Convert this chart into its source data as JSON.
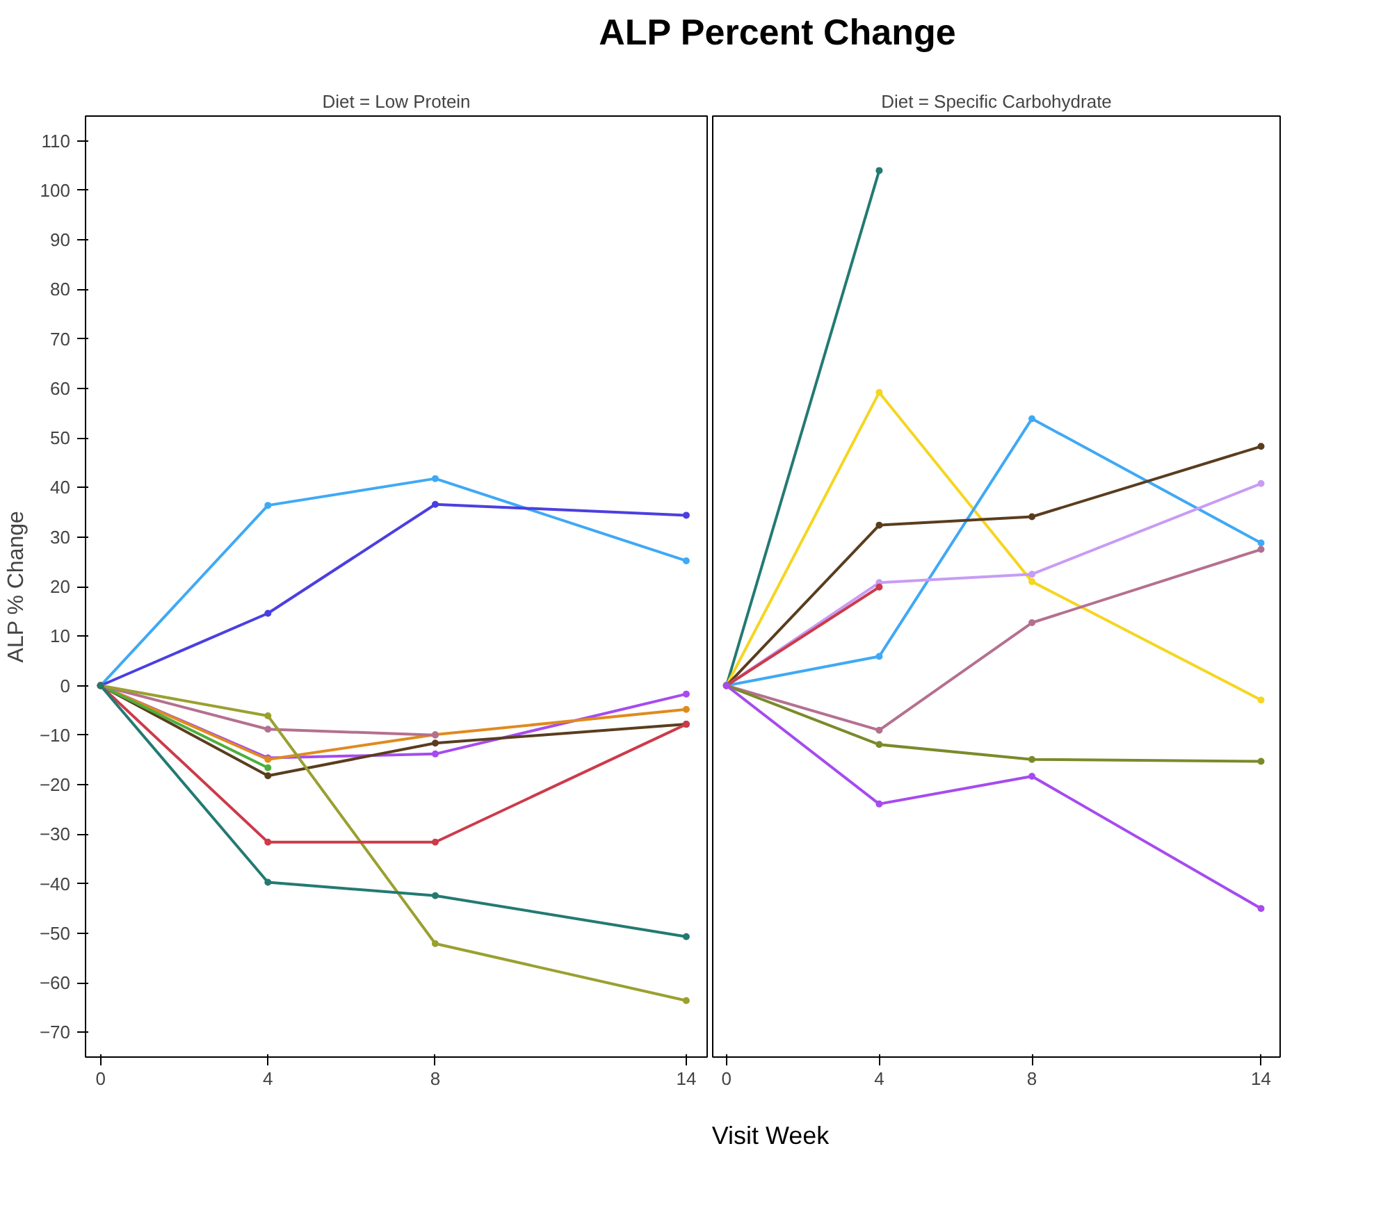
{
  "chart_data": [
    {
      "type": "line",
      "title": "ALP Percent Change",
      "subtitle": "Diet = Low Protein",
      "xlabel": "Visit Week",
      "ylabel": "ALP % Change",
      "marker": "circle",
      "line_style": "solid",
      "grid": false,
      "xlim": [
        -0.36,
        14.5
      ],
      "ylim": [
        -75,
        115
      ],
      "xticks": [
        0,
        4,
        8,
        14
      ],
      "yticks": [
        -70,
        -60,
        -50,
        -40,
        -30,
        -20,
        -10,
        0,
        10,
        20,
        30,
        40,
        50,
        60,
        70,
        80,
        90,
        100,
        110
      ],
      "series": [
        {
          "color": "#3fa9f5",
          "x": [
            0,
            4,
            8,
            14
          ],
          "values": [
            0,
            36.4,
            41.8,
            25.2
          ]
        },
        {
          "color": "#4b3fe0",
          "x": [
            0,
            4,
            8,
            14
          ],
          "values": [
            0,
            14.6,
            36.6,
            34.4
          ]
        },
        {
          "color": "#a64bf0",
          "x": [
            0,
            4,
            8,
            14
          ],
          "values": [
            0,
            -14.6,
            -13.8,
            -1.7
          ]
        },
        {
          "color": "#e08a1e",
          "x": [
            0,
            4,
            8,
            14
          ],
          "values": [
            0,
            -14.9,
            -9.9,
            -4.8
          ]
        },
        {
          "color": "#5a3d1e",
          "x": [
            0,
            4,
            8,
            14
          ],
          "values": [
            0,
            -18.2,
            -11.6,
            -7.8
          ]
        },
        {
          "color": "#4caf3c",
          "x": [
            0,
            4
          ],
          "values": [
            0,
            -16.6
          ]
        },
        {
          "color": "#b5708f",
          "x": [
            0,
            4,
            8
          ],
          "values": [
            0,
            -8.8,
            -10.0
          ]
        },
        {
          "color": "#9aa030",
          "x": [
            0,
            4,
            8,
            14
          ],
          "values": [
            0,
            -6.1,
            -52.1,
            -63.6
          ]
        },
        {
          "color": "#cc3b4a",
          "x": [
            0,
            4,
            8,
            14
          ],
          "values": [
            0,
            -31.6,
            -31.6,
            -7.8
          ]
        },
        {
          "color": "#237a72",
          "x": [
            0,
            4,
            8,
            14
          ],
          "values": [
            0,
            -39.7,
            -42.4,
            -50.7
          ]
        }
      ]
    },
    {
      "type": "line",
      "subtitle": "Diet = Specific Carbohydrate",
      "marker": "circle",
      "line_style": "solid",
      "grid": false,
      "tick_labels": "x",
      "xlim": [
        -0.36,
        14.5
      ],
      "ylim": [
        -75,
        115
      ],
      "xticks": [
        0,
        4,
        8,
        14
      ],
      "series": [
        {
          "color": "#237a72",
          "x": [
            0,
            4
          ],
          "values": [
            0,
            104.0
          ]
        },
        {
          "color": "#f5d620",
          "x": [
            0,
            4,
            8,
            14
          ],
          "values": [
            0,
            59.2,
            21.0,
            -2.9
          ]
        },
        {
          "color": "#3fa9f5",
          "x": [
            0,
            4,
            8,
            14
          ],
          "values": [
            0,
            5.9,
            53.9,
            28.8
          ]
        },
        {
          "color": "#5a3d1e",
          "x": [
            0,
            4,
            8,
            14
          ],
          "values": [
            0,
            32.4,
            34.1,
            48.3
          ]
        },
        {
          "color": "#c79cf5",
          "x": [
            0,
            4,
            8,
            14
          ],
          "values": [
            0,
            20.8,
            22.5,
            40.8
          ]
        },
        {
          "color": "#cc3b4a",
          "x": [
            0,
            4
          ],
          "values": [
            0,
            19.9
          ]
        },
        {
          "color": "#b5708f",
          "x": [
            0,
            4,
            8,
            14
          ],
          "values": [
            0,
            -9.0,
            12.7,
            27.5
          ]
        },
        {
          "color": "#7a8a2a",
          "x": [
            0,
            4,
            8,
            14
          ],
          "values": [
            0,
            -11.9,
            -14.9,
            -15.3
          ]
        },
        {
          "color": "#a64bf0",
          "x": [
            0,
            4,
            8,
            14
          ],
          "values": [
            0,
            -23.9,
            -18.3,
            -45.0
          ]
        }
      ]
    }
  ]
}
